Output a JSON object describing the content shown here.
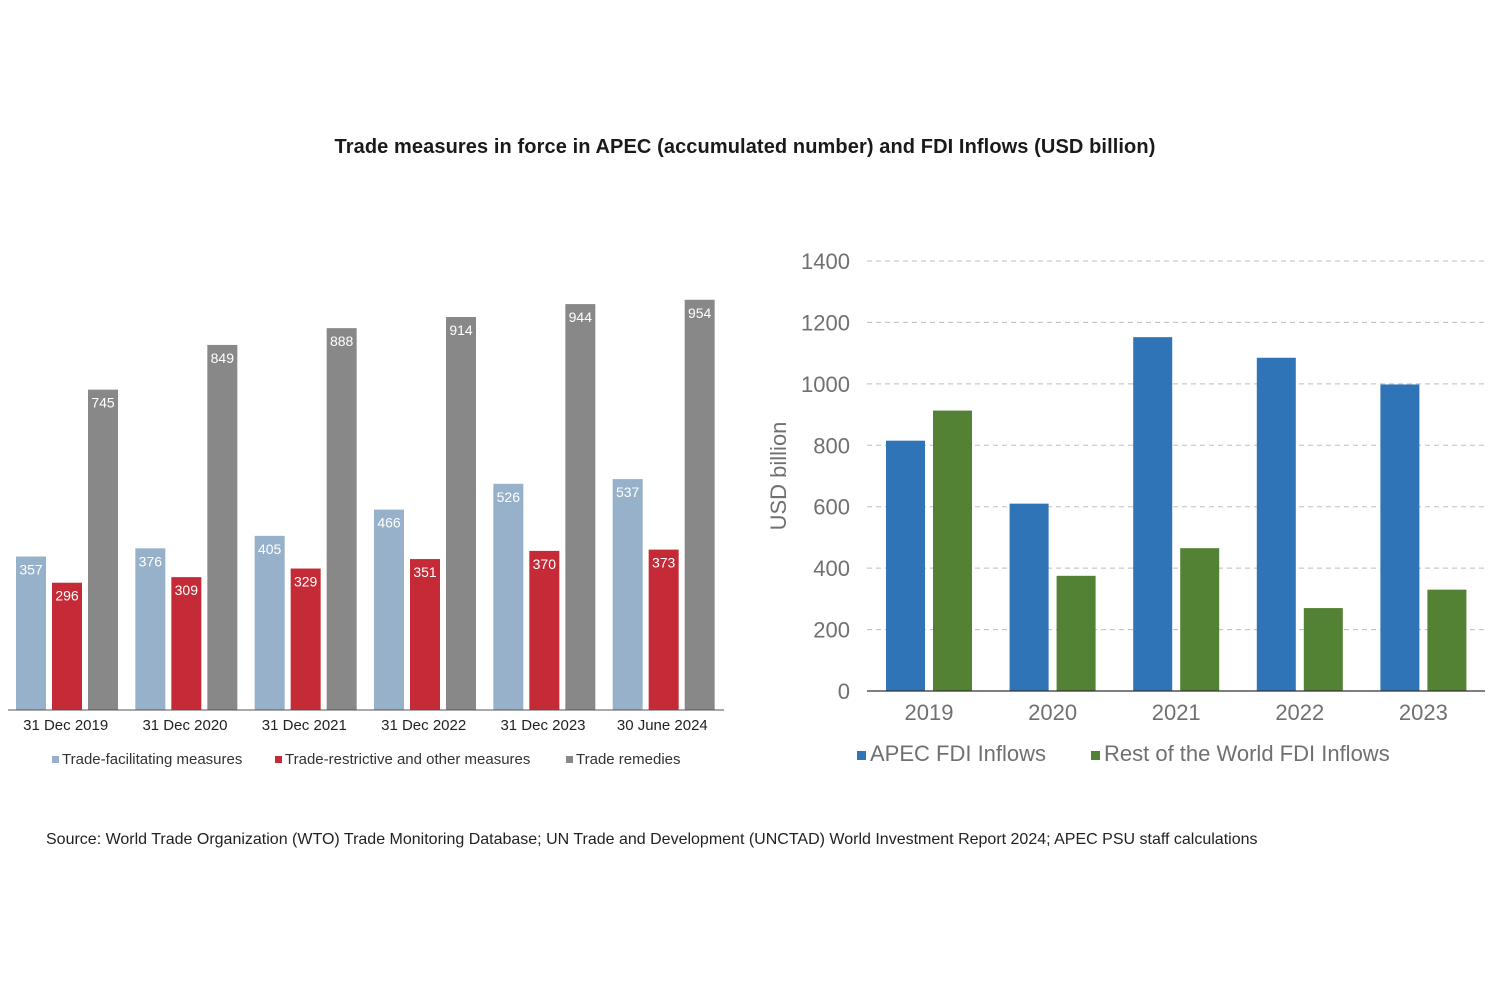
{
  "title": "Trade measures in force in APEC (accumulated number) and FDI Inflows (USD billion)",
  "source": "Source: World Trade Organization (WTO) Trade Monitoring Database; UN Trade and Development (UNCTAD) World Investment Report 2024; APEC PSU staff calculations",
  "chart_data": [
    {
      "type": "bar",
      "title": "",
      "xlabel": "",
      "ylabel": "",
      "categories": [
        "31 Dec 2019",
        "31 Dec 2020",
        "31 Dec 2021",
        "31 Dec 2022",
        "31 Dec 2023",
        "30 June 2024"
      ],
      "series": [
        {
          "name": "Trade-facilitating measures",
          "color": "#96b1c9",
          "values": [
            357,
            376,
            405,
            466,
            526,
            537
          ]
        },
        {
          "name": "Trade-restrictive and other measures",
          "color": "#c42b36",
          "values": [
            296,
            309,
            329,
            351,
            370,
            373
          ]
        },
        {
          "name": "Trade remedies",
          "color": "#888888",
          "values": [
            745,
            849,
            888,
            914,
            944,
            954
          ]
        }
      ],
      "ylim": [
        0,
        1000
      ],
      "data_labels": true,
      "grid": false,
      "legend": "bottom"
    },
    {
      "type": "bar",
      "title": "",
      "xlabel": "",
      "ylabel": "USD billion",
      "categories": [
        "2019",
        "2020",
        "2021",
        "2022",
        "2023"
      ],
      "series": [
        {
          "name": "APEC FDI Inflows",
          "color": "#2e74b7",
          "values": [
            815,
            610,
            1152,
            1085,
            998
          ]
        },
        {
          "name": "Rest of the World FDI Inflows",
          "color": "#548235",
          "values": [
            913,
            375,
            465,
            270,
            330
          ]
        }
      ],
      "ylim": [
        0,
        1400
      ],
      "yticks": [
        0,
        200,
        400,
        600,
        800,
        1000,
        1200,
        1400
      ],
      "grid": true,
      "legend": "bottom"
    }
  ]
}
